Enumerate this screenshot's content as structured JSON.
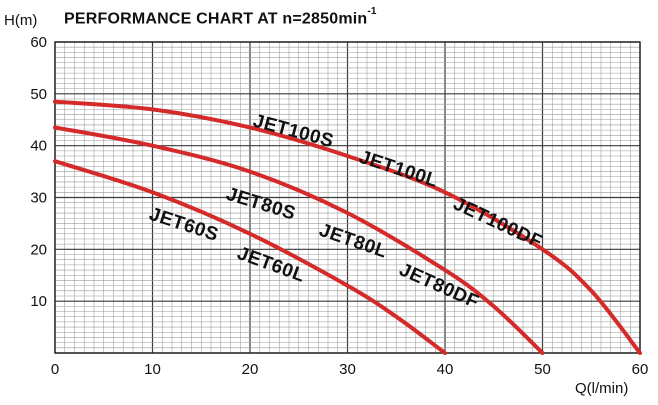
{
  "chart_data": {
    "type": "line",
    "title": "PERFORMANCE CHART AT n=2850min",
    "title_superscript": "-1",
    "xlabel": "Q(l/min)",
    "ylabel": "H(m)",
    "xlim": [
      0,
      60
    ],
    "ylim": [
      0,
      60
    ],
    "x_ticks": [
      "0",
      "10",
      "20",
      "30",
      "40",
      "50",
      "60"
    ],
    "y_ticks": [
      "10",
      "20",
      "30",
      "40",
      "50",
      "60"
    ],
    "grid": true,
    "line_color": "#d42a2a",
    "series": [
      {
        "x": [
          0,
          10,
          20,
          30,
          35,
          40
        ],
        "y": [
          37,
          31,
          23,
          13,
          7,
          0
        ]
      },
      {
        "x": [
          0,
          10,
          20,
          30,
          40,
          45,
          50
        ],
        "y": [
          43.5,
          40,
          35,
          27,
          16,
          9,
          0
        ]
      },
      {
        "x": [
          0,
          10,
          20,
          30,
          40,
          50,
          55,
          60
        ],
        "y": [
          48.5,
          47,
          43.5,
          38,
          31,
          20,
          12,
          0
        ]
      }
    ],
    "annotations": [
      "JET100S",
      "JET100L",
      "JET100DF",
      "JET80S",
      "JET80L",
      "JET80DF",
      "JET60S",
      "JET60L"
    ]
  }
}
